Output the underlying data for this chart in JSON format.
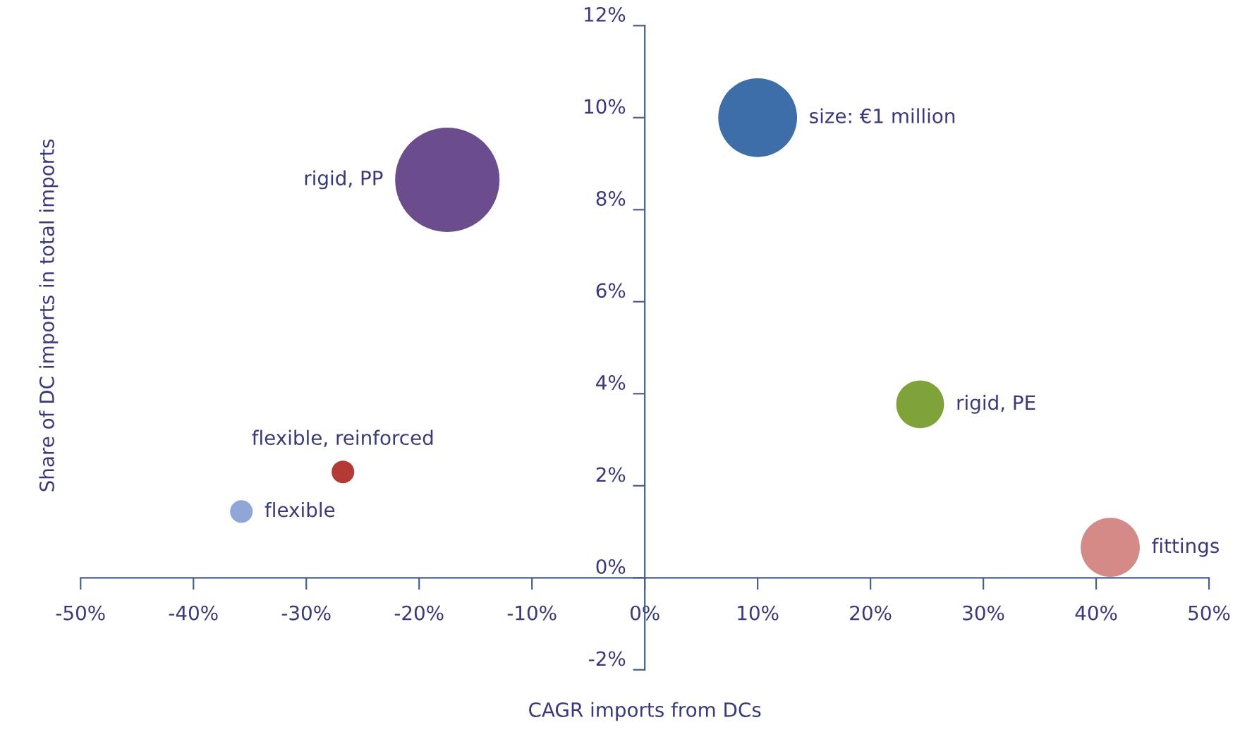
{
  "chart_data": {
    "type": "bubble",
    "xlabel": "CAGR imports from DCs",
    "ylabel": "Share of DC imports in total imports",
    "series": [
      {
        "name": "size: €1 million",
        "color": "#3d6ea8",
        "x": [
          10
        ],
        "values": [
          10.0
        ],
        "sizes": [
          0.57
        ]
      },
      {
        "name": "rigid, PP",
        "color": "#6b4c8c",
        "x": [
          -17.5
        ],
        "values": [
          8.65
        ],
        "sizes": [
          1
        ]
      },
      {
        "name": "rigid, PE",
        "color": "#7fa23a",
        "x": [
          24.4
        ],
        "values": [
          3.77
        ],
        "sizes": [
          0.21
        ]
      },
      {
        "name": "fittings",
        "color": "#d48a87",
        "x": [
          41.25
        ],
        "values": [
          0.66
        ],
        "sizes": [
          0.32
        ]
      },
      {
        "name": "flexible, reinforced",
        "color": "#b33a36",
        "x": [
          -26.75
        ],
        "values": [
          2.3
        ],
        "sizes": [
          0.047
        ]
      },
      {
        "name": "flexible",
        "color": "#8fa6d6",
        "x": [
          -35.75
        ],
        "values": [
          1.44
        ],
        "sizes": [
          0.047
        ]
      }
    ],
    "xlim": [
      -50,
      50
    ],
    "ylim": [
      -2,
      12
    ],
    "xticks": [
      {
        "value": -50,
        "label": "-50%"
      },
      {
        "value": -40,
        "label": "-40%"
      },
      {
        "value": -30,
        "label": "-30%"
      },
      {
        "value": -20,
        "label": "-20%"
      },
      {
        "value": -10,
        "label": "-10%"
      },
      {
        "value": 0,
        "label": "0%"
      },
      {
        "value": 10,
        "label": "10%"
      },
      {
        "value": 20,
        "label": "20%"
      },
      {
        "value": 30,
        "label": "30%"
      },
      {
        "value": 40,
        "label": "40%"
      },
      {
        "value": 50,
        "label": "50%"
      }
    ],
    "yticks": [
      {
        "value": -2,
        "label": "-2%"
      },
      {
        "value": 0,
        "label": "0%"
      },
      {
        "value": 2,
        "label": "2%"
      },
      {
        "value": 4,
        "label": "4%"
      },
      {
        "value": 6,
        "label": "6%"
      },
      {
        "value": 8,
        "label": "8%"
      },
      {
        "value": 10,
        "label": "10%"
      },
      {
        "value": 12,
        "label": "12%"
      }
    ],
    "grid": false,
    "legend": false
  }
}
